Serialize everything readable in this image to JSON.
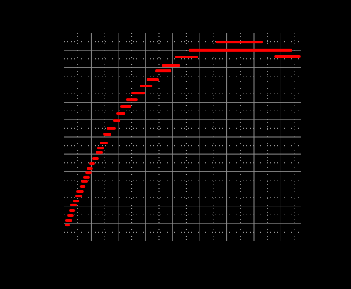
{
  "chart_data": {
    "type": "segments",
    "color": "#ff0000",
    "grid": true,
    "xlim": [
      0,
      8.75
    ],
    "ylim": [
      0,
      12
    ],
    "xticks": [
      1,
      2,
      3,
      4,
      5,
      6,
      7,
      8
    ],
    "yticks": [
      1,
      2,
      3,
      4,
      5,
      6,
      7,
      8,
      9,
      10,
      11
    ],
    "xminor": [
      0.5,
      1.5,
      2.5,
      3.5,
      4.5,
      5.5,
      6.5,
      7.5,
      8.5
    ],
    "yminor": [
      0.5,
      1.5,
      2.5,
      3.5,
      4.5,
      5.5,
      6.5,
      7.5,
      8.5,
      9.5,
      10.5,
      11.5
    ],
    "segments": [
      {
        "x": [
          0.1,
          0.15
        ],
        "y": 0.91
      },
      {
        "x": [
          0.1,
          0.25
        ],
        "y": 1.19
      },
      {
        "x": [
          0.18,
          0.3
        ],
        "y": 1.47
      },
      {
        "x": [
          0.23,
          0.36
        ],
        "y": 1.75
      },
      {
        "x": [
          0.28,
          0.43
        ],
        "y": 2.07
      },
      {
        "x": [
          0.38,
          0.51
        ],
        "y": 2.3
      },
      {
        "x": [
          0.46,
          0.61
        ],
        "y": 2.58
      },
      {
        "x": [
          0.51,
          0.68
        ],
        "y": 2.86
      },
      {
        "x": [
          0.63,
          0.74
        ],
        "y": 3.14
      },
      {
        "x": [
          0.68,
          0.84
        ],
        "y": 3.42
      },
      {
        "x": [
          0.76,
          0.91
        ],
        "y": 3.66
      },
      {
        "x": [
          0.84,
          0.96
        ],
        "y": 3.93
      },
      {
        "x": [
          0.89,
          1.01
        ],
        "y": 4.17
      },
      {
        "x": [
          0.99,
          1.09
        ],
        "y": 4.45
      },
      {
        "x": [
          1.09,
          1.24
        ],
        "y": 4.77
      },
      {
        "x": [
          1.22,
          1.37
        ],
        "y": 5.09
      },
      {
        "x": [
          1.27,
          1.42
        ],
        "y": 5.36
      },
      {
        "x": [
          1.37,
          1.57
        ],
        "y": 5.64
      },
      {
        "x": [
          1.5,
          1.7
        ],
        "y": 6.16
      },
      {
        "x": [
          1.62,
          1.85
        ],
        "y": 6.48
      },
      {
        "x": [
          1.85,
          2.03
        ],
        "y": 6.95
      },
      {
        "x": [
          1.98,
          2.21
        ],
        "y": 7.35
      },
      {
        "x": [
          2.13,
          2.43
        ],
        "y": 7.75
      },
      {
        "x": [
          2.33,
          2.66
        ],
        "y": 8.14
      },
      {
        "x": [
          2.54,
          2.94
        ],
        "y": 8.54
      },
      {
        "x": [
          2.84,
          3.2
        ],
        "y": 8.94
      },
      {
        "x": [
          3.09,
          3.45
        ],
        "y": 9.3
      },
      {
        "x": [
          3.4,
          3.91
        ],
        "y": 9.81
      },
      {
        "x": [
          3.65,
          4.23
        ],
        "y": 10.13
      },
      {
        "x": [
          4.13,
          4.87
        ],
        "y": 10.61
      },
      {
        "x": [
          4.64,
          8.37
        ],
        "y": 11.01
      },
      {
        "x": [
          7.79,
          8.67
        ],
        "y": 10.65
      },
      {
        "x": [
          5.65,
          7.28
        ],
        "y": 11.48
      }
    ]
  }
}
